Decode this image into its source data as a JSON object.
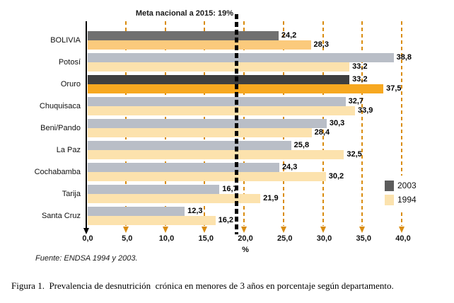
{
  "figure": {
    "source": "Fuente: ENDSA 1994 y 2003.",
    "caption": "Figura 1.  Prevalencia de desnutrición  crónica en menores de 3 años en porcentaje según departamento."
  },
  "legend": {
    "items": [
      {
        "label": "2003",
        "color": "#5c5c5c"
      },
      {
        "label": "1994",
        "color": "#fbe2ae"
      }
    ]
  },
  "colors": {
    "grid": "#d98c0f",
    "axis": "#000000",
    "target_line": "#000000",
    "series_2003_default": "#b9bec7",
    "series_1994_default": "#fce2ad",
    "bolivia_2003": "#707070",
    "bolivia_1994": "#fbca7c",
    "oruro_2003": "#3f3f3f",
    "oruro_1994": "#f7a820"
  },
  "chart_data": {
    "type": "bar",
    "orientation": "horizontal",
    "title": "Meta nacional a 2015: 19%",
    "categories": [
      "BOLIVIA",
      "Potosí",
      "Oruro",
      "Chuquisaca",
      "Beni/Pando",
      "La Paz",
      "Cochabamba",
      "Tarija",
      "Santa Cruz"
    ],
    "series": [
      {
        "name": "2003",
        "values": [
          24.2,
          38.8,
          33.2,
          32.7,
          30.3,
          25.8,
          24.3,
          16.7,
          12.3
        ],
        "labels": [
          "24,2",
          "38,8",
          "33,2",
          "32,7",
          "30,3",
          "25,8",
          "24,3",
          "16,7",
          "12,3"
        ],
        "colors": [
          "#707070",
          "#b9bec7",
          "#3f3f3f",
          "#b9bec7",
          "#b9bec7",
          "#b9bec7",
          "#b9bec7",
          "#b9bec7",
          "#b9bec7"
        ]
      },
      {
        "name": "1994",
        "values": [
          28.3,
          33.2,
          37.5,
          33.9,
          28.4,
          32.5,
          30.2,
          21.9,
          16.2
        ],
        "labels": [
          "28,3",
          "33,2",
          "37,5",
          "33,9",
          "28,4",
          "32,5",
          "30,2",
          "21,9",
          "16,2"
        ],
        "colors": [
          "#fbca7c",
          "#fce2ad",
          "#f7a820",
          "#fce2ad",
          "#fce2ad",
          "#fce2ad",
          "#fce2ad",
          "#fce2ad",
          "#fce2ad"
        ]
      }
    ],
    "target_line": {
      "value": 19,
      "label": "Meta nacional a 2015: 19%"
    },
    "xlim": [
      0,
      40
    ],
    "x_ticks": {
      "values": [
        0,
        5,
        10,
        15,
        20,
        25,
        30,
        35,
        40
      ],
      "labels": [
        "0,0",
        "5,0",
        "10,0",
        "15,0",
        "20,0",
        "25,0",
        "30,0",
        "35,0",
        "40,0"
      ]
    },
    "xlabel": "%",
    "grid": "vertical-dashed",
    "legend_position": "right-middle"
  }
}
